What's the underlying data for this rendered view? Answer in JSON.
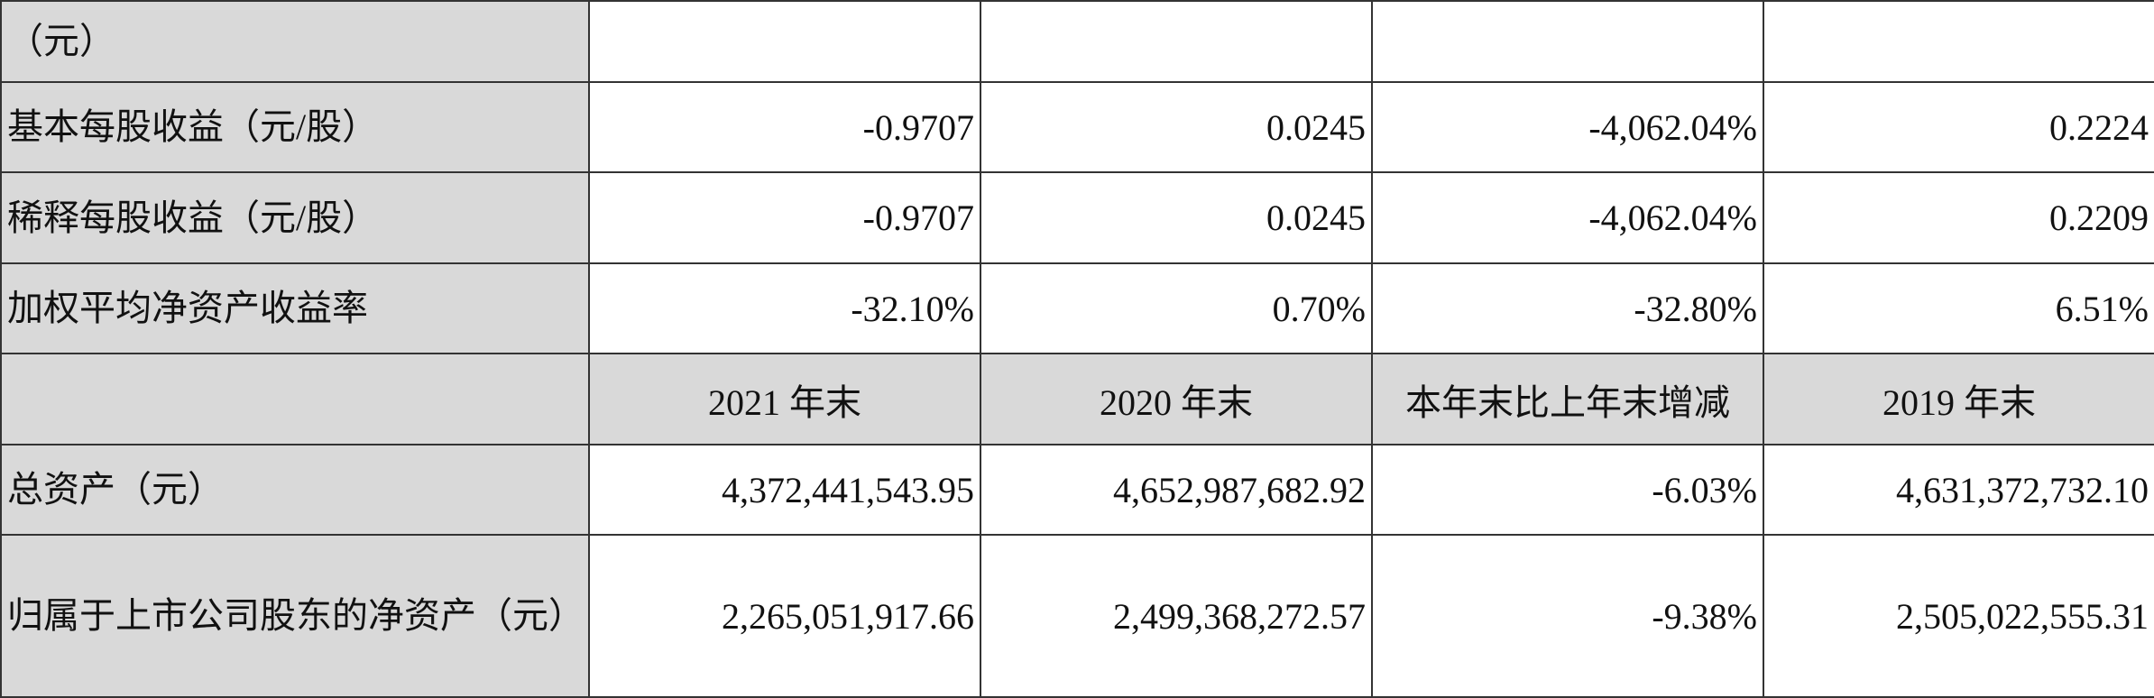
{
  "table": {
    "rows": [
      {
        "label": "（元）"
      },
      {
        "label": "基本每股收益（元/股）",
        "cells": [
          "-0.9707",
          "0.0245",
          "-4,062.04%",
          "0.2224"
        ]
      },
      {
        "label": "稀释每股收益（元/股）",
        "cells": [
          "-0.9707",
          "0.0245",
          "-4,062.04%",
          "0.2209"
        ]
      },
      {
        "label": "加权平均净资产收益率",
        "cells": [
          "-32.10%",
          "0.70%",
          "-32.80%",
          "6.51%"
        ]
      },
      {
        "cells": [
          "2021 年末",
          "2020 年末",
          "本年末比上年末增减",
          "2019 年末"
        ]
      },
      {
        "label": "总资产（元）",
        "cells": [
          "4,372,441,543.95",
          "4,652,987,682.92",
          "-6.03%",
          "4,631,372,732.10"
        ]
      },
      {
        "label": "归属于上市公司股东的净资产（元）",
        "cells": [
          "2,265,051,917.66",
          "2,499,368,272.57",
          "-9.38%",
          "2,505,022,555.31"
        ]
      }
    ]
  }
}
